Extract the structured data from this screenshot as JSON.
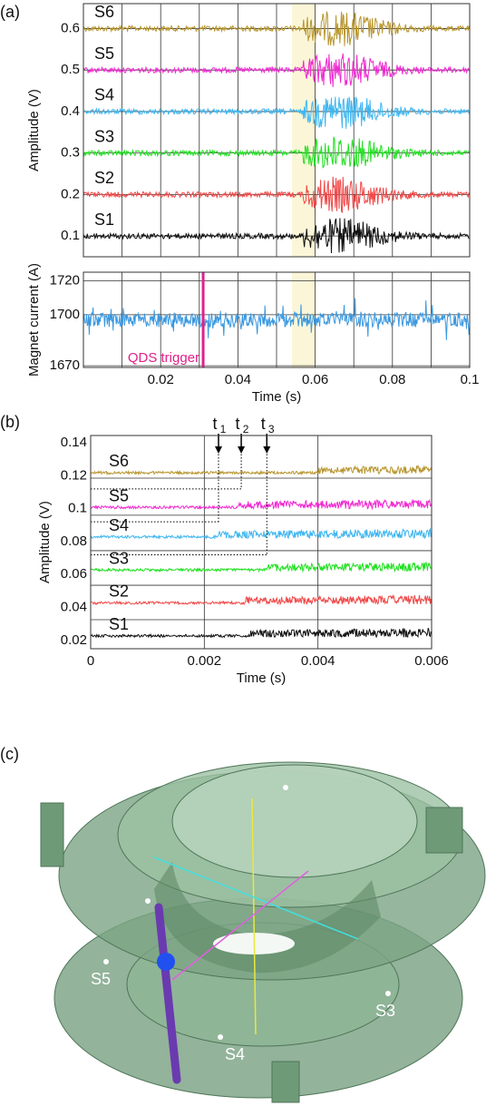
{
  "panel_labels": [
    "(a)",
    "(b)",
    "(c)"
  ],
  "chart_data": [
    {
      "type": "traces",
      "ylabel": "Amplitude (V)",
      "xlim": [
        0,
        0.1
      ],
      "ylim": [
        0.05,
        0.66
      ],
      "yticks": [
        0.1,
        0.2,
        0.3,
        0.4,
        0.5,
        0.6
      ],
      "xgrid": [
        0.01,
        0.02,
        0.03,
        0.04,
        0.05,
        0.06,
        0.07,
        0.08,
        0.09
      ],
      "highlight": [
        0.054,
        0.06
      ],
      "burst_start": 0.057,
      "burst_peak": 0.066,
      "series": [
        {
          "name": "S6",
          "color": "#b8962e",
          "offset": 0.6
        },
        {
          "name": "S5",
          "color": "#f02ad0",
          "offset": 0.5
        },
        {
          "name": "S4",
          "color": "#3fb6f0",
          "offset": 0.4
        },
        {
          "name": "S3",
          "color": "#22e022",
          "offset": 0.3
        },
        {
          "name": "S2",
          "color": "#f04848",
          "offset": 0.2
        },
        {
          "name": "S1",
          "color": "#101010",
          "offset": 0.1
        }
      ]
    },
    {
      "type": "current",
      "ylabel": "Magnet current (A)",
      "xlabel": "Time (s)",
      "xlim": [
        0,
        0.1
      ],
      "ylim": [
        1669,
        1725
      ],
      "yticks": [
        1670,
        1700,
        1720
      ],
      "xticks": [
        0.02,
        0.04,
        0.06,
        0.08,
        0.1
      ],
      "xgrid": [
        0.01,
        0.02,
        0.03,
        0.04,
        0.05,
        0.06,
        0.07,
        0.08,
        0.09
      ],
      "highlight": [
        0.054,
        0.06
      ],
      "level": 1697,
      "color": "#3a98e0",
      "marker": {
        "label": "QDS trigger",
        "x": 0.031,
        "color": "#e0218a"
      }
    },
    {
      "type": "traces",
      "ylabel": "Amplitude (V)",
      "xlabel": "Time (s)",
      "xlim": [
        0,
        0.006
      ],
      "ylim": [
        0.015,
        0.1444
      ],
      "yticks": [
        0.02,
        0.04,
        0.06,
        0.08,
        0.1,
        0.12,
        0.14
      ],
      "xticks": [
        0,
        0.002,
        0.004,
        0.006
      ],
      "xgrid": [
        0.002,
        0.004
      ],
      "separators": [
        0.1185,
        0.096,
        0.0745,
        0.0535,
        0.0326
      ],
      "series": [
        {
          "name": "S6",
          "color": "#b8962e",
          "offset": 0.121,
          "onset": 0.004
        },
        {
          "name": "S5",
          "color": "#f02ad0",
          "offset": 0.1,
          "onset": 0.0026
        },
        {
          "name": "S4",
          "color": "#3fb6f0",
          "offset": 0.082,
          "onset": 0.00225
        },
        {
          "name": "S3",
          "color": "#22e022",
          "offset": 0.062,
          "onset": 0.0031
        },
        {
          "name": "S2",
          "color": "#f04848",
          "offset": 0.042,
          "onset": 0.0027
        },
        {
          "name": "S1",
          "color": "#101010",
          "offset": 0.022,
          "onset": 0.0028
        }
      ],
      "markers": [
        {
          "label": "t",
          "sub": "1",
          "x": 0.00225,
          "level": 0.092
        },
        {
          "label": "t",
          "sub": "2",
          "x": 0.00265,
          "level": 0.112
        },
        {
          "label": "t",
          "sub": "3",
          "x": 0.0031,
          "level": 0.072
        }
      ]
    }
  ],
  "illustration": {
    "labels": [
      "S5",
      "S3",
      "S4"
    ]
  }
}
